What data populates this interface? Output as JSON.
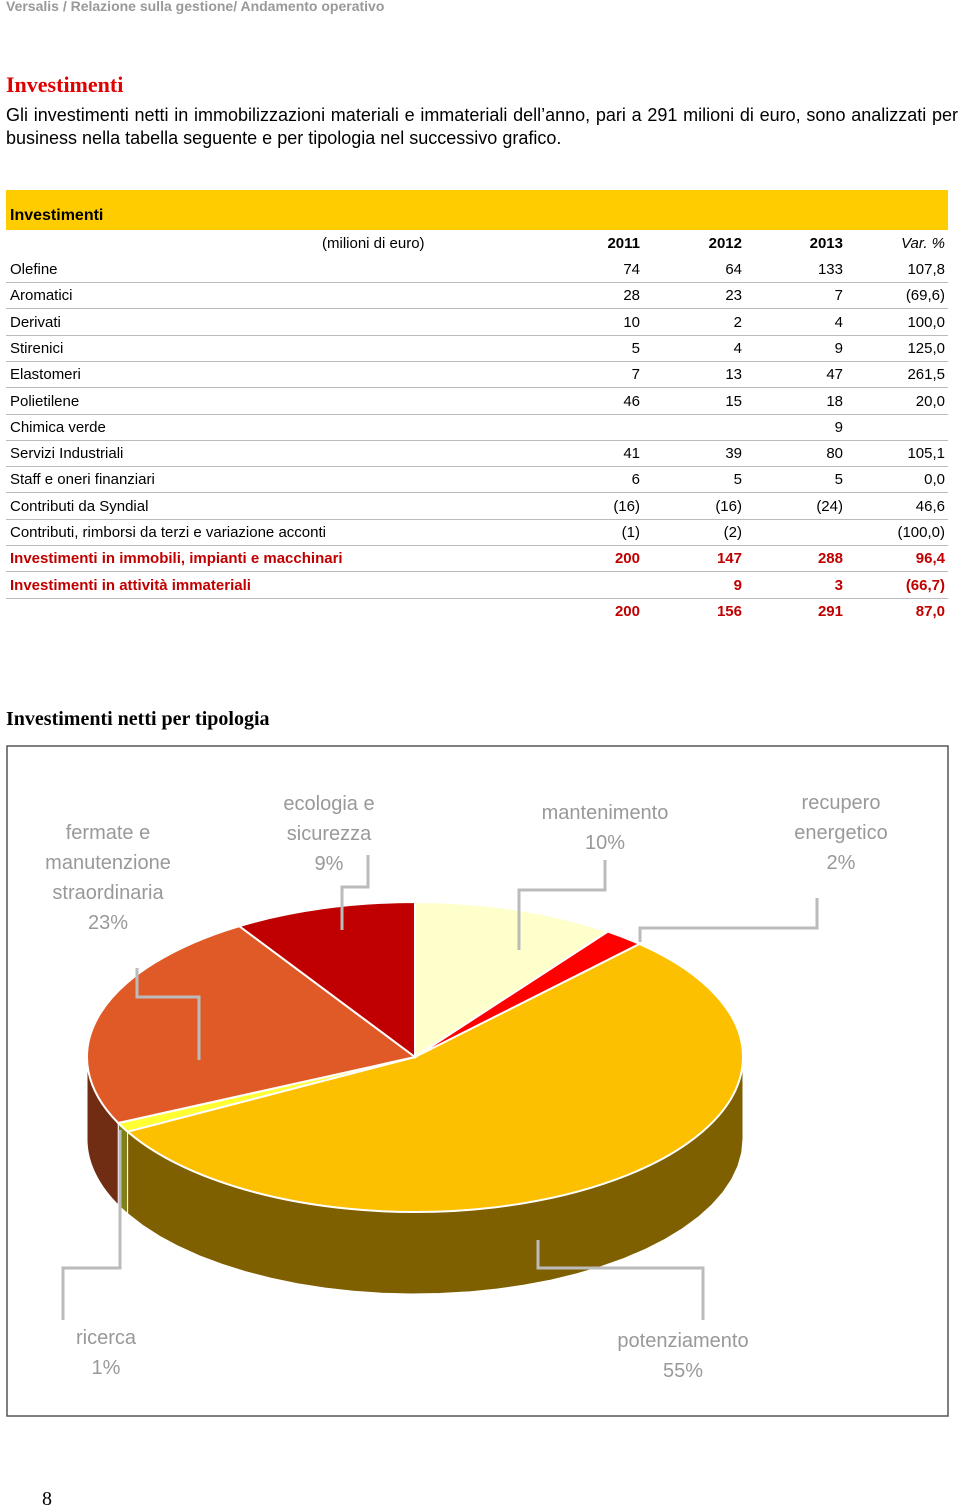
{
  "header": {
    "breadcrumb": "Versalis / Relazione sulla gestione/ Andamento operativo"
  },
  "section": {
    "title": "Investimenti",
    "text": "Gli investimenti netti in immobilizzazioni materiali e immateriali dell’anno, pari a 291 milioni di euro, sono analizzati per business nella tabella seguente e per tipologia nel successivo grafico."
  },
  "table": {
    "title": "Investimenti",
    "columns": [
      "(milioni di euro)",
      "2011",
      "2012",
      "2013",
      "Var. %"
    ],
    "rows": [
      [
        "Olefine",
        "74",
        "64",
        "133",
        "107,8"
      ],
      [
        "Aromatici",
        "28",
        "23",
        "7",
        "(69,6)"
      ],
      [
        "Derivati",
        "10",
        "2",
        "4",
        "100,0"
      ],
      [
        "Stirenici",
        "5",
        "4",
        "9",
        "125,0"
      ],
      [
        "Elastomeri",
        "7",
        "13",
        "47",
        "261,5"
      ],
      [
        "Polietilene",
        "46",
        "15",
        "18",
        "20,0"
      ],
      [
        "Chimica verde",
        null,
        null,
        "9",
        null
      ],
      [
        "Servizi Industriali",
        "41",
        "39",
        "80",
        "105,1"
      ],
      [
        "Staff e oneri finanziari",
        "6",
        "5",
        "5",
        "0,0"
      ],
      [
        "Contributi da Syndial",
        "(16)",
        "(16)",
        "(24)",
        "46,6"
      ],
      [
        "Contributi, rimborsi da terzi e variazione acconti",
        "(1)",
        "(2)",
        null,
        "(100,0)"
      ],
      [
        "Investimenti in immobili, impianti e macchinari",
        "200",
        "147",
        "288",
        "96,4"
      ],
      [
        "Investimenti in attività immateriali",
        null,
        "9",
        "3",
        "(66,7)"
      ],
      [
        null,
        "200",
        "156",
        "291",
        "87,0"
      ]
    ]
  },
  "chart_data": {
    "type": "pie",
    "title": "Investimenti netti per tipologia",
    "categories": [
      "mantenimento",
      "recupero energetico",
      "potenziamento",
      "ricerca",
      "fermate e manutenzione straordinaria",
      "ecologia e sicurezza"
    ],
    "values": [
      10,
      2,
      55,
      1,
      23,
      9
    ],
    "value_labels": [
      "10%",
      "2%",
      "55%",
      "1%",
      "23%",
      "9%"
    ],
    "colors": [
      "#ffffcc",
      "#ff0000",
      "#fcc000",
      "#ffff33",
      "#e05a28",
      "#c00000"
    ]
  },
  "page_number": "8"
}
